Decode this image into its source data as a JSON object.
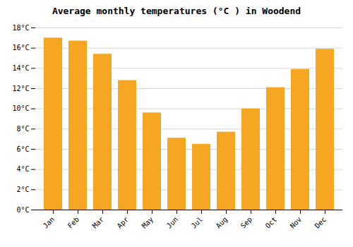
{
  "chart_data": {
    "type": "bar",
    "title": "Average monthly temperatures (°C ) in Woodend",
    "categories": [
      "Jan",
      "Feb",
      "Mar",
      "Apr",
      "May",
      "Jun",
      "Jul",
      "Aug",
      "Sep",
      "Oct",
      "Nov",
      "Dec"
    ],
    "values": [
      17.0,
      16.7,
      15.4,
      12.8,
      9.6,
      7.1,
      6.5,
      7.7,
      10.0,
      12.1,
      13.9,
      15.9
    ],
    "color": "#F5A623",
    "ylim": [
      0,
      18
    ],
    "yticks": [
      {
        "value": 0,
        "label": "0°C"
      },
      {
        "value": 2,
        "label": "2°C"
      },
      {
        "value": 4,
        "label": "4°C"
      },
      {
        "value": 6,
        "label": "6°C"
      },
      {
        "value": 8,
        "label": "8°C"
      },
      {
        "value": 10,
        "label": "10°C"
      },
      {
        "value": 12,
        "label": "12°C"
      },
      {
        "value": 14,
        "label": "14°C"
      },
      {
        "value": 16,
        "label": "16°C"
      },
      {
        "value": 18,
        "label": "18°C"
      }
    ],
    "grid": true
  }
}
